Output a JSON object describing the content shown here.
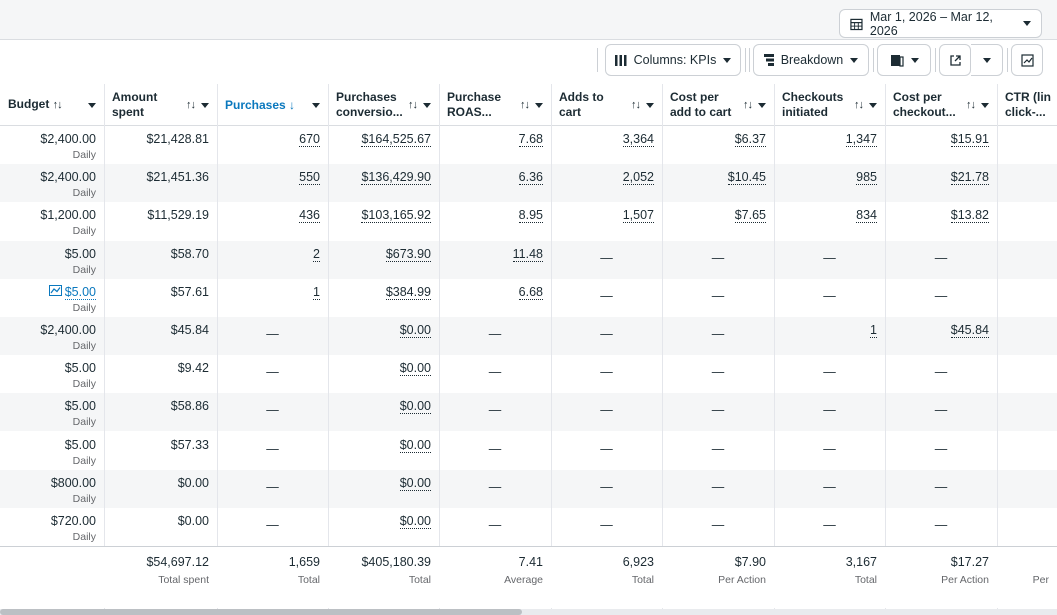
{
  "date_range": "Mar 1, 2026 – Mar 12, 2026",
  "toolbar": {
    "columns_label": "Columns: KPIs",
    "breakdown_label": "Breakdown"
  },
  "headers": [
    {
      "key": "budget",
      "label": "Budget",
      "sort": "↑↓"
    },
    {
      "key": "spent",
      "label1": "Amount",
      "label2": "spent"
    },
    {
      "key": "purchases",
      "label": "Purchases"
    },
    {
      "key": "conv",
      "label1": "Purchases",
      "label2": "conversio..."
    },
    {
      "key": "roas",
      "label1": "Purchase",
      "label2": "ROAS..."
    },
    {
      "key": "atc",
      "label1": "Adds to",
      "label2": "cart"
    },
    {
      "key": "cpatc",
      "label1": "Cost per",
      "label2": "add to cart"
    },
    {
      "key": "checkouts",
      "label1": "Checkouts",
      "label2": "initiated"
    },
    {
      "key": "cpco",
      "label1": "Cost per",
      "label2": "checkout..."
    },
    {
      "key": "ctr",
      "label1": "CTR (lin",
      "label2": "click-..."
    }
  ],
  "rows": [
    {
      "budget": "$2,400.00",
      "budget_sub": "Daily",
      "spent": "$21,428.81",
      "purchases": "670",
      "conv": "$164,525.67",
      "roas": "7.68",
      "atc": "3,364",
      "cpatc": "$6.37",
      "checkouts": "1,347",
      "cpco": "$15.91"
    },
    {
      "budget": "$2,400.00",
      "budget_sub": "Daily",
      "spent": "$21,451.36",
      "purchases": "550",
      "conv": "$136,429.90",
      "roas": "6.36",
      "atc": "2,052",
      "cpatc": "$10.45",
      "checkouts": "985",
      "cpco": "$21.78"
    },
    {
      "budget": "$1,200.00",
      "budget_sub": "Daily",
      "spent": "$11,529.19",
      "purchases": "436",
      "conv": "$103,165.92",
      "roas": "8.95",
      "atc": "1,507",
      "cpatc": "$7.65",
      "checkouts": "834",
      "cpco": "$13.82"
    },
    {
      "budget": "$5.00",
      "budget_sub": "Daily",
      "spent": "$58.70",
      "purchases": "2",
      "conv": "$673.90",
      "roas": "11.48",
      "atc": "—",
      "cpatc": "—",
      "checkouts": "—",
      "cpco": "—"
    },
    {
      "budget": "$5.00",
      "budget_sub": "Daily",
      "spent": "$57.61",
      "purchases": "1",
      "conv": "$384.99",
      "roas": "6.68",
      "atc": "—",
      "cpatc": "—",
      "checkouts": "—",
      "cpco": "—"
    },
    {
      "budget": "$2,400.00",
      "budget_sub": "Daily",
      "spent": "$45.84",
      "purchases": "—",
      "conv": "$0.00",
      "roas": "—",
      "atc": "—",
      "cpatc": "—",
      "checkouts": "1",
      "cpco": "$45.84"
    },
    {
      "budget": "$5.00",
      "budget_sub": "Daily",
      "spent": "$9.42",
      "purchases": "—",
      "conv": "$0.00",
      "roas": "—",
      "atc": "—",
      "cpatc": "—",
      "checkouts": "—",
      "cpco": "—"
    },
    {
      "budget": "$5.00",
      "budget_sub": "Daily",
      "spent": "$58.86",
      "purchases": "—",
      "conv": "$0.00",
      "roas": "—",
      "atc": "—",
      "cpatc": "—",
      "checkouts": "—",
      "cpco": "—"
    },
    {
      "budget": "$5.00",
      "budget_sub": "Daily",
      "spent": "$57.33",
      "purchases": "—",
      "conv": "$0.00",
      "roas": "—",
      "atc": "—",
      "cpatc": "—",
      "checkouts": "—",
      "cpco": "—"
    },
    {
      "budget": "$800.00",
      "budget_sub": "Daily",
      "spent": "$0.00",
      "purchases": "—",
      "conv": "$0.00",
      "roas": "—",
      "atc": "—",
      "cpatc": "—",
      "checkouts": "—",
      "cpco": "—"
    },
    {
      "budget": "$720.00",
      "budget_sub": "Daily",
      "spent": "$0.00",
      "purchases": "—",
      "conv": "$0.00",
      "roas": "—",
      "atc": "—",
      "cpatc": "—",
      "checkouts": "—",
      "cpco": "—"
    }
  ],
  "totals": {
    "spent": "$54,697.12",
    "spent_sub": "Total spent",
    "purchases": "1,659",
    "purchases_sub": "Total",
    "conv": "$405,180.39",
    "conv_sub": "Total",
    "roas": "7.41",
    "roas_sub": "Average",
    "atc": "6,923",
    "atc_sub": "Total",
    "cpatc": "$7.90",
    "cpatc_sub": "Per Action",
    "checkouts": "3,167",
    "checkouts_sub": "Total",
    "cpco": "$17.27",
    "cpco_sub": "Per Action",
    "ctr_sub": "Per"
  },
  "colors": {
    "accent": "#0a78be",
    "alt_row": "#f5f6f7",
    "border": "#dadde1"
  }
}
